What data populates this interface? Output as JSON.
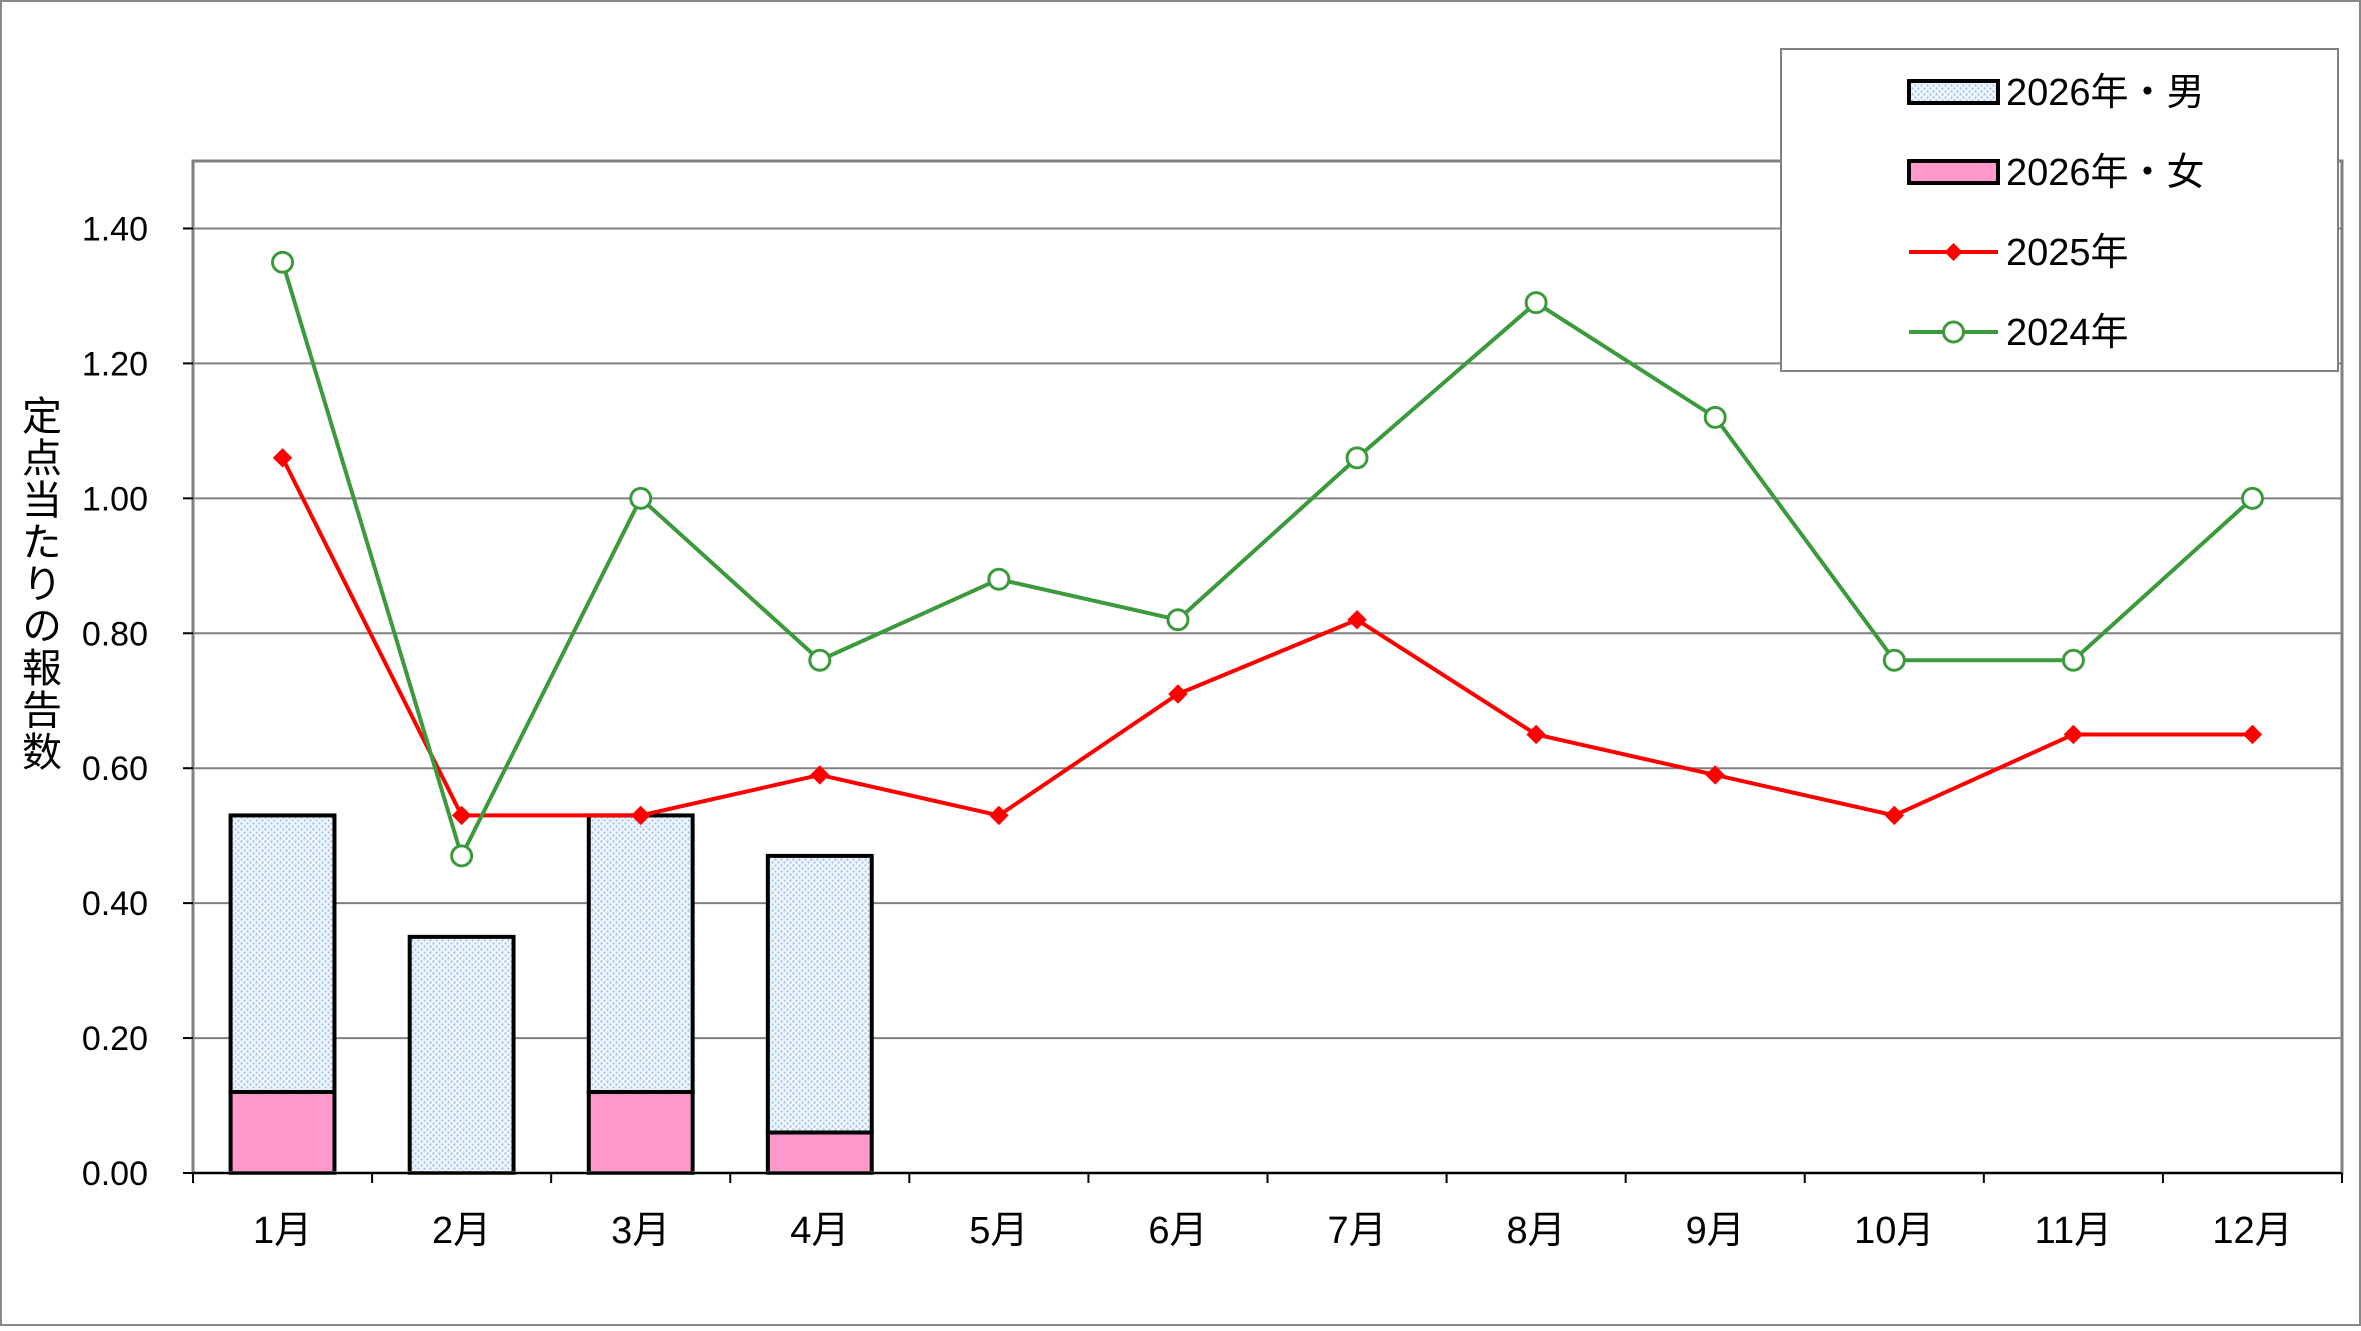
{
  "chart_data": {
    "type": "bar+line",
    "title": "",
    "xlabel": "",
    "ylabel": "定点当たりの報告数",
    "categories": [
      "1月",
      "2月",
      "3月",
      "4月",
      "5月",
      "6月",
      "7月",
      "8月",
      "9月",
      "10月",
      "11月",
      "12月"
    ],
    "ylim": [
      0,
      1.5
    ],
    "yticks": [
      0.0,
      0.2,
      0.4,
      0.6,
      0.8,
      1.0,
      1.2,
      1.4
    ],
    "ytick_labels": [
      "0.00",
      "0.20",
      "0.40",
      "0.60",
      "0.80",
      "1.00",
      "1.20",
      "1.40"
    ],
    "grid": true,
    "legend_position": "top-right",
    "bar_series": [
      {
        "name": "2026年・男",
        "values": [
          0.41,
          0.35,
          0.41,
          0.41,
          null,
          null,
          null,
          null,
          null,
          null,
          null,
          null
        ],
        "color": "#dbe9f7"
      },
      {
        "name": "2026年・女",
        "values": [
          0.12,
          0.0,
          0.12,
          0.06,
          null,
          null,
          null,
          null,
          null,
          null,
          null,
          null
        ],
        "color": "#ff99cc"
      }
    ],
    "line_series": [
      {
        "name": "2025年",
        "marker": "diamond",
        "color": "#ff0000",
        "values": [
          1.06,
          0.53,
          0.53,
          0.59,
          0.53,
          0.71,
          0.82,
          0.65,
          0.59,
          0.53,
          0.65,
          0.65
        ]
      },
      {
        "name": "2024年",
        "marker": "circle",
        "color": "#3c9a3c",
        "values": [
          1.35,
          0.47,
          1.0,
          0.76,
          0.88,
          0.82,
          1.06,
          1.29,
          1.12,
          0.76,
          0.76,
          1.0
        ]
      }
    ]
  }
}
